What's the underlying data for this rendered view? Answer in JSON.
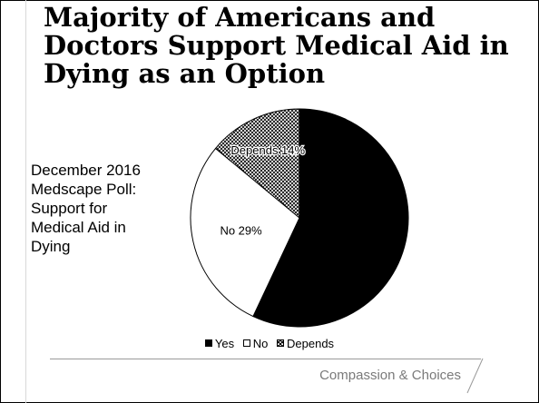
{
  "slide": {
    "title": "Majority of Americans and Doctors Support Medical Aid in Dying as an Option",
    "subtitle": "December 2016 Medscape Poll: Support for Medical Aid in Dying",
    "footer": "Compassion & Choices"
  },
  "chart_data": {
    "type": "pie",
    "title": "",
    "slices": [
      {
        "name": "Yes",
        "value": 57,
        "label": "",
        "color": "#000000"
      },
      {
        "name": "No",
        "value": 29,
        "label": "No 29%",
        "color": "#ffffff"
      },
      {
        "name": "Depends",
        "value": 14,
        "label": "Depends 14%",
        "color": "hatch"
      }
    ],
    "legend": {
      "placement": "bottom",
      "entries": [
        "Yes",
        "No",
        "Depends"
      ]
    }
  }
}
